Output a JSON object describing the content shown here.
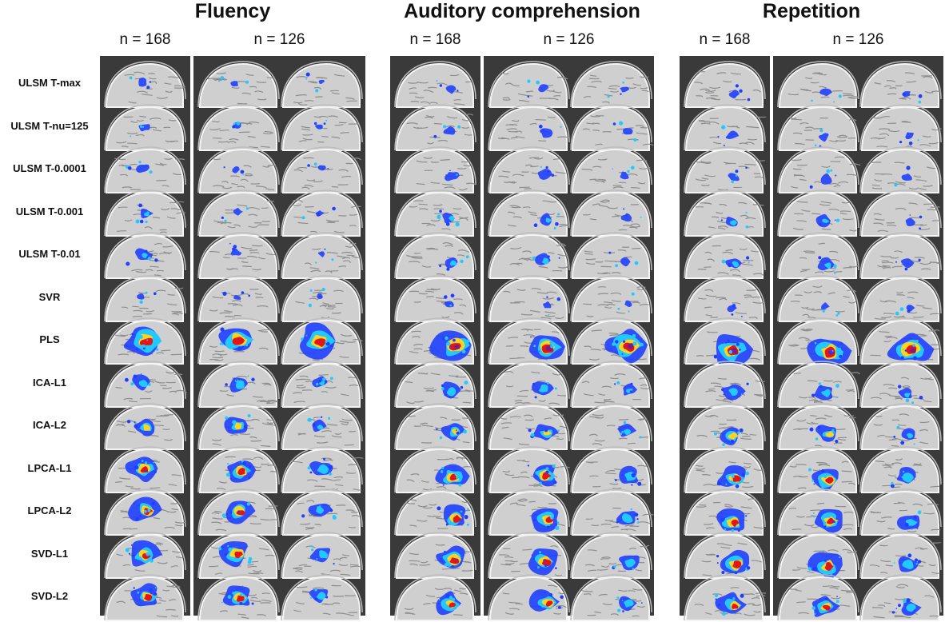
{
  "tasks": [
    {
      "title": "Fluency",
      "n_labels": [
        "n = 168",
        "n = 126"
      ]
    },
    {
      "title": "Auditory comprehension",
      "n_labels": [
        "n = 168",
        "n = 126"
      ]
    },
    {
      "title": "Repetition",
      "n_labels": [
        "n = 168",
        "n = 126"
      ]
    }
  ],
  "methods": [
    "ULSM T-max",
    "ULSM T-nu=125",
    "ULSM T-0.0001",
    "ULSM T-0.001",
    "ULSM T-0.01",
    "SVR",
    "PLS",
    "ICA-L1",
    "ICA-L2",
    "LPCA-L1",
    "LPCA-L2",
    "SVD-L1",
    "SVD-L2"
  ],
  "colors": {
    "panel_background": "#3a3a3a",
    "brain_gray": "#cfcfcf",
    "map_low": "#1f3fff",
    "map_mid": "#22c9ff",
    "map_high": "#ffd21f",
    "map_peak": "#e0161b",
    "map_max": "#7a1a8f"
  }
}
